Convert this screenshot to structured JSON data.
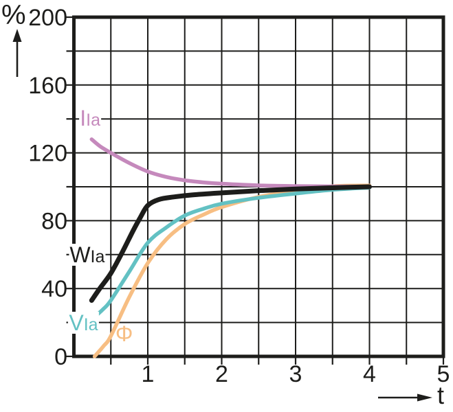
{
  "chart_data": {
    "type": "line",
    "title": "",
    "xlabel": "t",
    "ylabel": "%",
    "xlim": [
      0,
      5
    ],
    "ylim": [
      0,
      200
    ],
    "grid": true,
    "x_grid_step": 0.5,
    "y_grid_step": 20,
    "x_tick_labels": [
      "1",
      "2",
      "3",
      "4",
      "5"
    ],
    "x_tick_values": [
      1,
      2,
      3,
      4,
      5
    ],
    "y_tick_labels": [
      "0",
      "40",
      "80",
      "120",
      "160",
      "200"
    ],
    "y_tick_values": [
      0,
      40,
      80,
      120,
      160,
      200
    ],
    "axis_color": "#1d1d1b",
    "series": [
      {
        "name": "IIa",
        "label_main": "I",
        "label_sub": "Ia",
        "color": "#c589bc",
        "line_width": 5.5,
        "label_pos": {
          "t": 0.22,
          "pct": 140.5
        },
        "points": [
          [
            0.24,
            128
          ],
          [
            0.35,
            124
          ],
          [
            0.5,
            120
          ],
          [
            0.75,
            114
          ],
          [
            1,
            109
          ],
          [
            1.25,
            105.8
          ],
          [
            1.5,
            103.8
          ],
          [
            1.75,
            102.6
          ],
          [
            2,
            101.8
          ],
          [
            2.5,
            100.8
          ],
          [
            3,
            100.4
          ],
          [
            3.5,
            100.2
          ],
          [
            4,
            100.1
          ]
        ]
      },
      {
        "name": "WIa",
        "label_main": "W",
        "label_sub": "Ia",
        "color": "#1d1d1b",
        "line_width": 7,
        "label_pos": {
          "t": 0.18,
          "pct": 60
        },
        "points": [
          [
            0.24,
            33
          ],
          [
            0.35,
            40
          ],
          [
            0.5,
            49
          ],
          [
            0.65,
            61
          ],
          [
            0.8,
            74
          ],
          [
            0.9,
            82
          ],
          [
            1,
            89
          ],
          [
            1.15,
            92.5
          ],
          [
            1.35,
            94
          ],
          [
            1.6,
            95.2
          ],
          [
            2,
            96.4
          ],
          [
            2.5,
            97.7
          ],
          [
            3,
            98.7
          ],
          [
            3.5,
            99.4
          ],
          [
            4,
            100
          ]
        ]
      },
      {
        "name": "VIa",
        "label_main": "V",
        "label_sub": "Ia",
        "color": "#63c1c3",
        "line_width": 5.5,
        "label_pos": {
          "t": 0.13,
          "pct": 20
        },
        "points": [
          [
            0.25,
            22
          ],
          [
            0.4,
            28
          ],
          [
            0.5,
            33
          ],
          [
            0.75,
            50
          ],
          [
            1,
            67
          ],
          [
            1.25,
            76
          ],
          [
            1.5,
            83
          ],
          [
            1.75,
            87
          ],
          [
            2,
            90
          ],
          [
            2.5,
            93.5
          ],
          [
            3,
            96
          ],
          [
            3.5,
            98.2
          ],
          [
            4,
            99.5
          ]
        ]
      },
      {
        "name": "Phi",
        "label_main": "Φ",
        "label_sub": "",
        "color": "#f7be83",
        "line_width": 5.5,
        "label_pos": {
          "t": 0.68,
          "pct": 13.5
        },
        "points": [
          [
            0.28,
            0
          ],
          [
            0.4,
            6
          ],
          [
            0.5,
            12
          ],
          [
            0.75,
            35
          ],
          [
            1,
            55
          ],
          [
            1.25,
            69
          ],
          [
            1.5,
            78
          ],
          [
            1.75,
            83.5
          ],
          [
            2,
            88
          ],
          [
            2.5,
            94
          ],
          [
            3,
            97.5
          ],
          [
            3.5,
            100.3
          ],
          [
            4,
            100.7
          ]
        ]
      }
    ]
  }
}
